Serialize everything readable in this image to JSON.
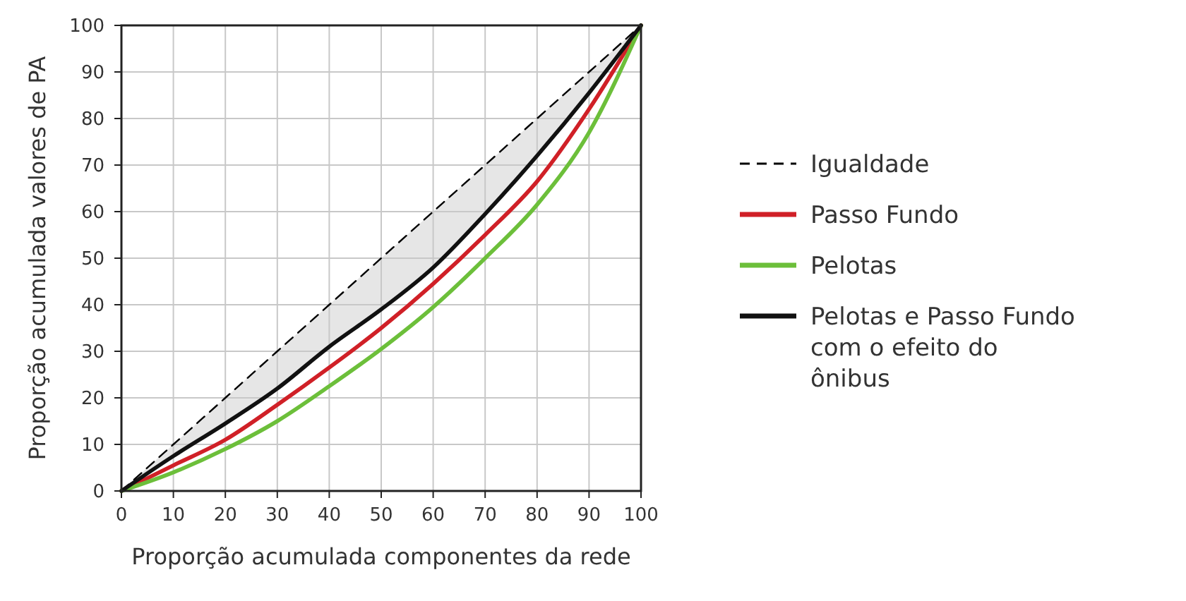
{
  "chart_data": {
    "type": "line",
    "xlabel": "Proporção acumulada componentes da rede",
    "ylabel": "Proporção acumulada valores de PA",
    "x": [
      0,
      10,
      20,
      30,
      40,
      50,
      60,
      70,
      80,
      90,
      100
    ],
    "xlim": [
      0,
      100
    ],
    "ylim": [
      0,
      100
    ],
    "xticks": [
      0,
      10,
      20,
      30,
      40,
      50,
      60,
      70,
      80,
      90,
      100
    ],
    "yticks": [
      0,
      10,
      20,
      30,
      40,
      50,
      60,
      70,
      80,
      90,
      100
    ],
    "grid": true,
    "legend": "right",
    "series": [
      {
        "name": "Igualdade",
        "color": "#000000",
        "line_style": "dashed",
        "values": [
          0,
          10,
          20,
          30,
          40,
          50,
          60,
          70,
          80,
          90,
          100
        ],
        "lower": [
          0,
          7.5,
          14.5,
          22,
          31,
          39,
          48,
          59.5,
          72,
          85.5,
          100
        ],
        "upper": [
          0,
          10,
          20,
          30,
          40,
          50,
          60,
          70,
          80,
          90,
          100
        ]
      },
      {
        "name": "Passo Fundo",
        "color": "#d02027",
        "line_style": "solid",
        "values": [
          0,
          5.5,
          11,
          18.5,
          26.5,
          35,
          44.5,
          55,
          66.5,
          82,
          100
        ]
      },
      {
        "name": "Pelotas",
        "color": "#6cbf3a",
        "line_style": "solid",
        "values": [
          0,
          4,
          9,
          15,
          22.5,
          30.5,
          39.5,
          50,
          61.5,
          77,
          100
        ]
      },
      {
        "name": "Pelotas e Passo Fundo com o efeito do ônibus",
        "color": "#111111",
        "line_style": "solid",
        "values": [
          0,
          7.5,
          14.5,
          22,
          31,
          39,
          48,
          59.5,
          72,
          85.5,
          100
        ]
      }
    ]
  }
}
